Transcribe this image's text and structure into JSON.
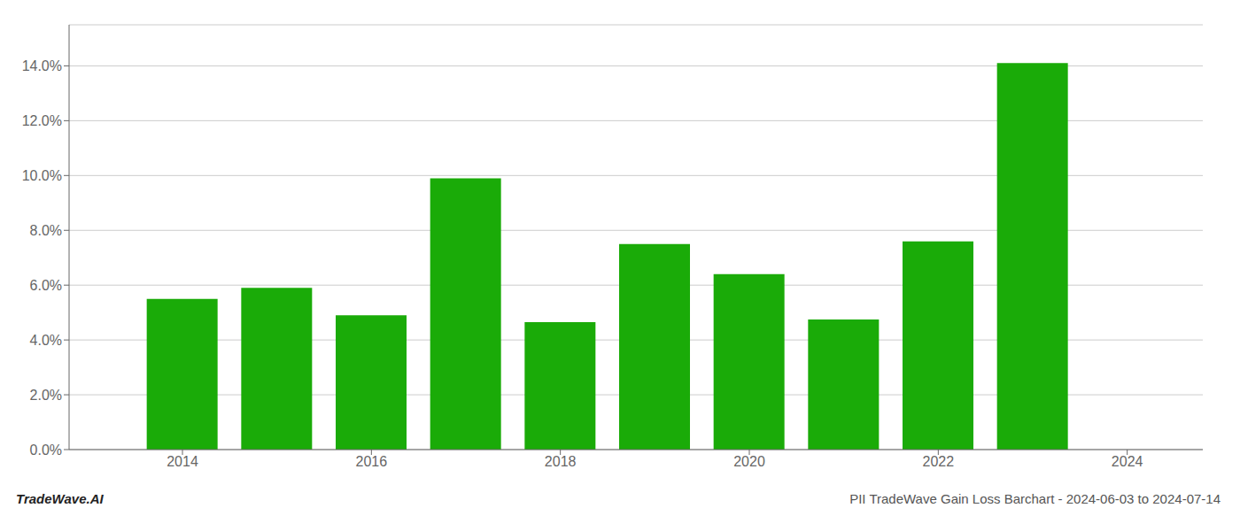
{
  "chart_data": {
    "type": "bar",
    "title": "PII TradeWave Gain Loss Barchart - 2024-06-03 to 2024-07-14",
    "annotations": [
      "TradeWave.AI"
    ],
    "x": [
      2014,
      2015,
      2016,
      2017,
      2018,
      2019,
      2020,
      2021,
      2022,
      2023
    ],
    "values": [
      0.055,
      0.059,
      0.049,
      0.099,
      0.0465,
      0.075,
      0.064,
      0.0475,
      0.076,
      0.141
    ],
    "color": "#1aab08",
    "xlim": [
      2012.8,
      2024.8
    ],
    "xticks": [
      2014,
      2016,
      2018,
      2020,
      2022,
      2024
    ],
    "ylim": [
      0,
      0.155
    ],
    "yticks": [
      {
        "value": 0,
        "label": "0.0%"
      },
      {
        "value": 0.02,
        "label": "2.0%"
      },
      {
        "value": 0.04,
        "label": "4.0%"
      },
      {
        "value": 0.06,
        "label": "6.0%"
      },
      {
        "value": 0.08,
        "label": "8.0%"
      },
      {
        "value": 0.1,
        "label": "10.0%"
      },
      {
        "value": 0.12,
        "label": "12.0%"
      },
      {
        "value": 0.14,
        "label": "14.0%"
      }
    ],
    "grid": true
  }
}
